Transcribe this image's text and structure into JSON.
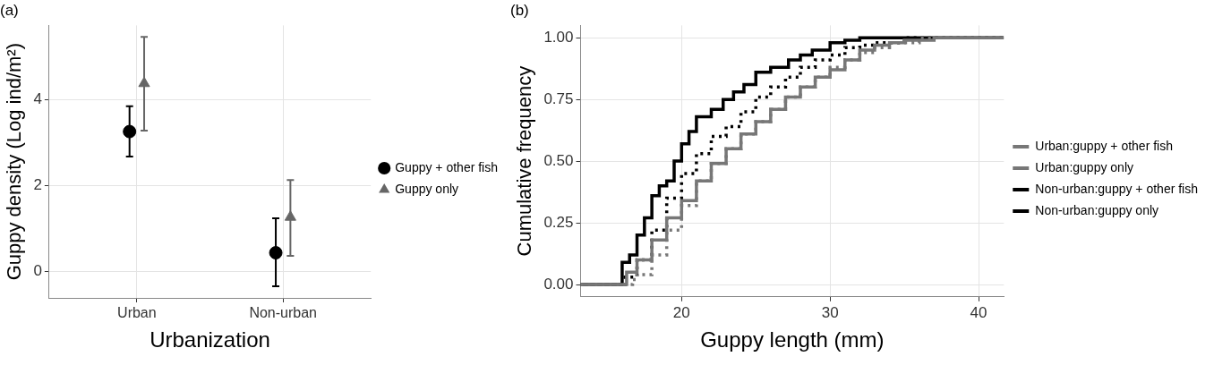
{
  "chart_data": [
    {
      "type": "scatter",
      "title": "(a)",
      "xlabel": "Urbanization",
      "ylabel": "Guppy density (Log ind/m²)",
      "categories": [
        "Urban",
        "Non-urban"
      ],
      "ylim": [
        -0.62,
        5.72
      ],
      "yticks": [
        0,
        2,
        4
      ],
      "grid": true,
      "legend": "right",
      "series": [
        {
          "name": "Guppy + other fish",
          "color": "#000000",
          "marker": "circle",
          "values": [
            3.25,
            0.43
          ],
          "errors": [
            [
              2.67,
              3.84
            ],
            [
              -0.35,
              1.23
            ]
          ]
        },
        {
          "name": "Guppy only",
          "color": "#666666",
          "marker": "triangle",
          "values": [
            4.37,
            1.26
          ],
          "errors": [
            [
              3.27,
              5.45
            ],
            [
              0.36,
              2.12
            ]
          ]
        }
      ]
    },
    {
      "type": "step",
      "title": "(b)",
      "xlabel": "Guppy length (mm)",
      "ylabel": "Cumulative frequency",
      "xlim": [
        13.2,
        41.7
      ],
      "xticks": [
        20,
        30,
        40
      ],
      "ylim": [
        -0.05,
        1.05
      ],
      "yticks": [
        {
          "value": 0,
          "label": "0.00"
        },
        {
          "value": 0.25,
          "label": "0.25"
        },
        {
          "value": 0.5,
          "label": "0.50"
        },
        {
          "value": 0.75,
          "label": "0.75"
        },
        {
          "value": 1,
          "label": "1.00"
        }
      ],
      "grid": true,
      "legend": "right",
      "series": [
        {
          "name": "Urban:guppy + other fish",
          "color": "#777777",
          "line_style": "dotted",
          "x": [
            13.2,
            16.7,
            17,
            18,
            19,
            20,
            21,
            22,
            23,
            24,
            25,
            26,
            27,
            28,
            29,
            30,
            31,
            32,
            33,
            34,
            36,
            41.7
          ],
          "values": [
            0,
            0.02,
            0.04,
            0.12,
            0.22,
            0.32,
            0.42,
            0.49,
            0.55,
            0.61,
            0.66,
            0.71,
            0.76,
            0.8,
            0.84,
            0.88,
            0.91,
            0.94,
            0.96,
            0.98,
            1,
            1
          ]
        },
        {
          "name": "Urban:guppy only",
          "color": "#777777",
          "line_style": "solid",
          "x": [
            13.2,
            16.3,
            17,
            18,
            19,
            20,
            21,
            22,
            23,
            24,
            25,
            26,
            27,
            28,
            29,
            30,
            31,
            32,
            33,
            34,
            35,
            37,
            41.7
          ],
          "values": [
            0,
            0.05,
            0.1,
            0.18,
            0.27,
            0.34,
            0.42,
            0.49,
            0.55,
            0.61,
            0.66,
            0.71,
            0.76,
            0.8,
            0.84,
            0.87,
            0.91,
            0.95,
            0.97,
            0.98,
            0.99,
            1,
            1
          ]
        },
        {
          "name": "Non-urban:guppy + other fish",
          "color": "#000000",
          "line_style": "dotted",
          "x": [
            13.2,
            16.2,
            17,
            18,
            19,
            20,
            21,
            22,
            23,
            24,
            25,
            26,
            27,
            28,
            29,
            30,
            31,
            32,
            33,
            35,
            41.7
          ],
          "values": [
            0,
            0.03,
            0.1,
            0.22,
            0.35,
            0.45,
            0.53,
            0.6,
            0.64,
            0.7,
            0.76,
            0.8,
            0.84,
            0.88,
            0.91,
            0.93,
            0.96,
            0.97,
            0.98,
            1,
            1
          ]
        },
        {
          "name": "Non-urban:guppy only",
          "color": "#000000",
          "line_style": "solid",
          "x": [
            13.2,
            16,
            16.5,
            17,
            17.5,
            18,
            18.5,
            19,
            19.5,
            20,
            20.5,
            21,
            22,
            22.8,
            23.5,
            24.2,
            25,
            26,
            27.2,
            28,
            28.8,
            30,
            31,
            32,
            41.7
          ],
          "values": [
            0,
            0.09,
            0.12,
            0.2,
            0.27,
            0.36,
            0.4,
            0.42,
            0.5,
            0.57,
            0.62,
            0.68,
            0.71,
            0.75,
            0.78,
            0.81,
            0.86,
            0.88,
            0.91,
            0.93,
            0.95,
            0.98,
            0.99,
            1,
            1
          ]
        }
      ]
    }
  ]
}
